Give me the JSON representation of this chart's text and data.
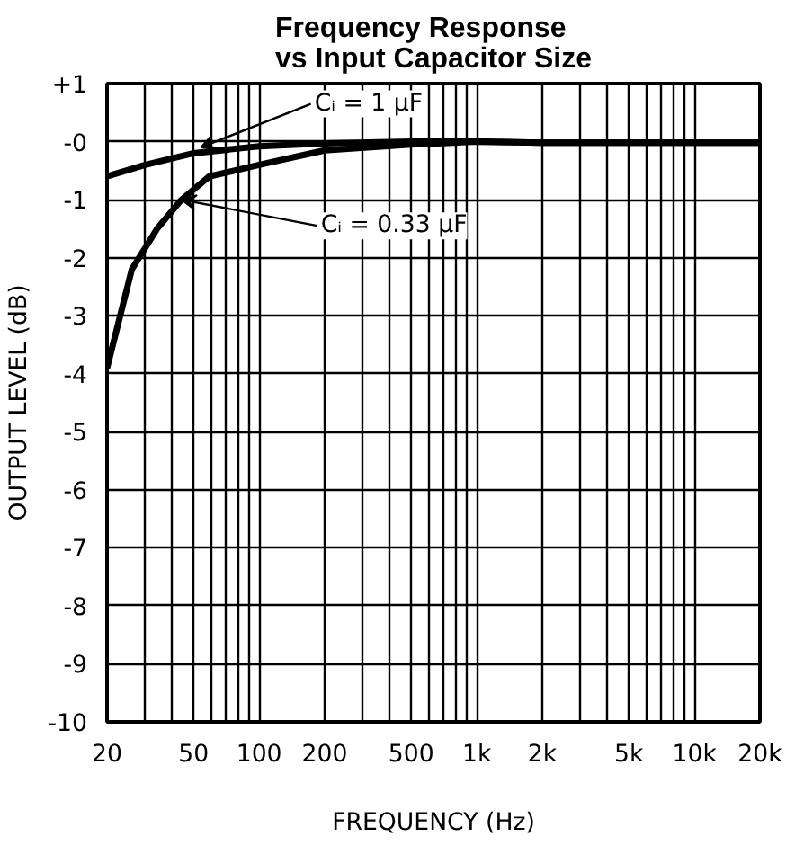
{
  "chart_data": {
    "type": "line",
    "title": "Frequency Response\nvs Input Capacitor Size",
    "xlabel": "FREQUENCY (Hz)",
    "ylabel": "OUTPUT LEVEL (dB)",
    "log": "x",
    "grid": true,
    "xlim": [
      20,
      20000
    ],
    "ylim": [
      -10,
      1
    ],
    "xticks": [
      20,
      {
        "value": 30,
        "label": null
      },
      {
        "value": 40,
        "label": null
      },
      50,
      {
        "value": 60,
        "label": null
      },
      {
        "value": 70,
        "label": null
      },
      {
        "value": 80,
        "label": null
      },
      {
        "value": 90,
        "label": null
      },
      100,
      200,
      {
        "value": 300,
        "label": null
      },
      {
        "value": 400,
        "label": null
      },
      500,
      {
        "value": 600,
        "label": null
      },
      {
        "value": 700,
        "label": null
      },
      {
        "value": 800,
        "label": null
      },
      {
        "value": 900,
        "label": null
      },
      {
        "value": 1000,
        "label": "1k"
      },
      {
        "value": 2000,
        "label": "2k"
      },
      {
        "value": 3000,
        "label": null
      },
      {
        "value": 4000,
        "label": null
      },
      {
        "value": 5000,
        "label": "5k"
      },
      {
        "value": 6000,
        "label": null
      },
      {
        "value": 7000,
        "label": null
      },
      {
        "value": 8000,
        "label": null
      },
      {
        "value": 9000,
        "label": null
      },
      {
        "value": 10000,
        "label": "10k"
      },
      {
        "value": 20000,
        "label": "20k"
      }
    ],
    "yticks": [
      {
        "value": 1,
        "label": "+1"
      },
      {
        "value": 0,
        "label": "-0"
      },
      -1,
      -2,
      -3,
      -4,
      -5,
      -6,
      -7,
      -8,
      -9,
      -10
    ],
    "series": [
      {
        "color": "#000000",
        "x": [
          20,
          30,
          50,
          100,
          200,
          500,
          1000,
          2000,
          20000
        ],
        "values": [
          -0.6,
          -0.4,
          -0.2,
          -0.08,
          -0.03,
          0,
          0,
          -0.02,
          -0.02
        ]
      },
      {
        "color": "#000000",
        "x": [
          20,
          26,
          34,
          44,
          59,
          100,
          200,
          500,
          1000,
          2000,
          20000
        ],
        "values": [
          -3.9,
          -2.2,
          -1.5,
          -1.0,
          -0.6,
          -0.4,
          -0.15,
          -0.05,
          0,
          -0.02,
          -0.02
        ]
      }
    ],
    "annotations": [
      {
        "text": "Cᵢ = 1 μF",
        "x": 54,
        "y": -0.1
      },
      {
        "text": "Cᵢ = 0.33 μF",
        "x": 44,
        "y": -1.0
      }
    ]
  }
}
